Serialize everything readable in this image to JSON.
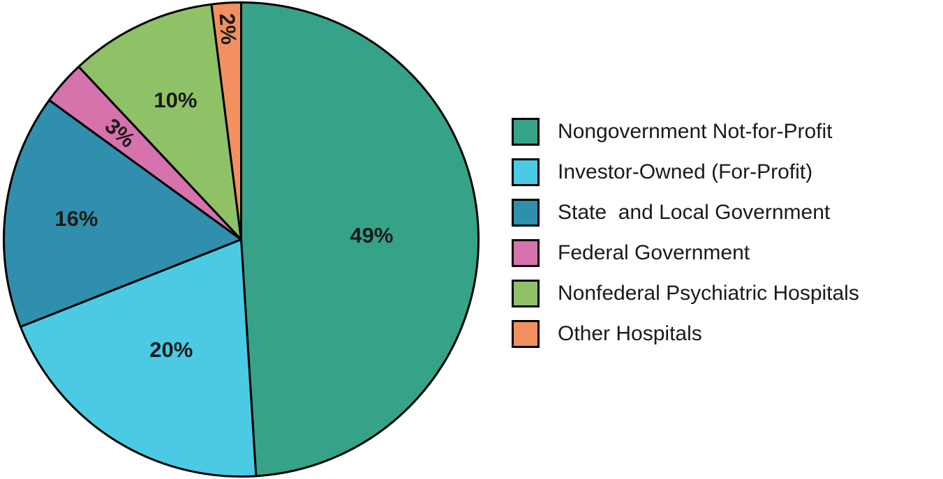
{
  "chart_data": {
    "type": "pie",
    "title": "",
    "start_angle_deg": 0,
    "direction": "clockwise",
    "legend_position": "right",
    "stroke_color": "#000000",
    "label_color": "#1a1a1a",
    "slices": [
      {
        "label": "Nongovernment Not-for-Profit",
        "value": 49,
        "pct_label": "49%",
        "color": "#36A389",
        "label_r": 0.55,
        "label_rot": 0
      },
      {
        "label": "Investor-Owned (For-Profit)",
        "value": 20,
        "pct_label": "20%",
        "color": "#4BCBE3",
        "label_r": 0.55,
        "label_rot": 0
      },
      {
        "label": "State  and Local Government",
        "value": 16,
        "pct_label": "16%",
        "color": "#2F8FAC",
        "label_r": 0.7,
        "label_rot": 0
      },
      {
        "label": "Federal Government",
        "value": 3,
        "pct_label": "3%",
        "color": "#D672AC",
        "label_r": 0.68,
        "label_rot": 41
      },
      {
        "label": "Nonfederal Psychiatric Hospitals",
        "value": 10,
        "pct_label": "10%",
        "color": "#8FC167",
        "label_r": 0.65,
        "label_rot": 0
      },
      {
        "label": "Other Hospitals",
        "value": 2,
        "pct_label": "2%",
        "color": "#F2905F",
        "label_r": 0.89,
        "label_rot": 86
      }
    ]
  }
}
